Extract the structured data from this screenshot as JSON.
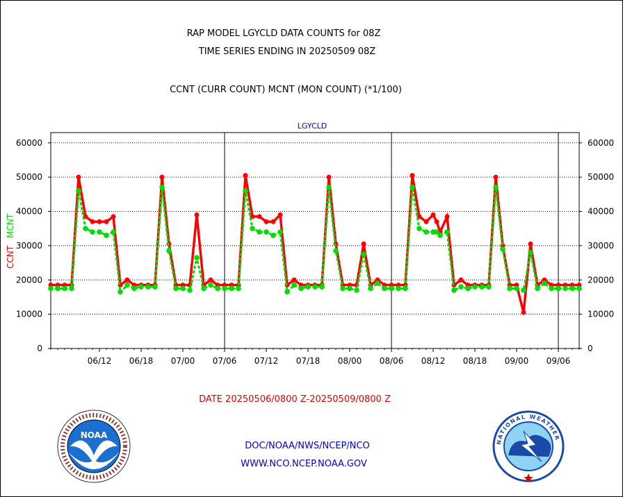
{
  "header": {
    "title_line1": "RAP MODEL LGYCLD DATA COUNTS for 08Z",
    "title_line2": "TIME SERIES ENDING IN 20250509 08Z",
    "subtitle": "CCNT (CURR COUNT) MCNT (MON COUNT) (*1/100)"
  },
  "footer": {
    "date_range": "DATE 20250506/0800 Z-20250509/0800 Z",
    "org_line1": "DOC/NOAA/NWS/NCEP/NCO",
    "org_line2": "WWW.NCO.NCEP.NOAA.GOV",
    "noaa_logo_text": "NOAA",
    "nws_logo_text": "NATIONAL WEATHER SERVICE"
  },
  "colors": {
    "ccnt": "#ff0000",
    "mcnt": "#00dd00",
    "panel_label": "#0000cc",
    "date_text": "#dd0000",
    "link_text": "#0000cc"
  },
  "chart_data": {
    "type": "line",
    "panel_label": "LGYCLD",
    "ylabel_ccnt": "CCNT",
    "ylabel_mcnt": "MCNT",
    "ylim": [
      0,
      63000
    ],
    "yticks": [
      0,
      10000,
      20000,
      30000,
      40000,
      50000,
      60000
    ],
    "ytick_labels": [
      "0",
      "10000",
      "20000",
      "30000",
      "40000",
      "50000",
      "60000"
    ],
    "xticks": [
      7,
      13,
      19,
      25,
      31,
      37,
      43,
      49,
      55,
      61,
      67,
      73
    ],
    "xtick_labels": [
      "06/12",
      "06/18",
      "07/00",
      "07/06",
      "07/12",
      "07/18",
      "08/00",
      "08/06",
      "08/12",
      "08/18",
      "09/00",
      "09/06"
    ],
    "xlim": [
      0,
      76
    ],
    "day_boundaries": [
      25,
      49,
      73
    ],
    "grid": true,
    "x": [
      0,
      1,
      2,
      3,
      4,
      5,
      6,
      7,
      8,
      9,
      10,
      11,
      12,
      13,
      14,
      15,
      16,
      17,
      18,
      19,
      20,
      21,
      22,
      23,
      24,
      25,
      26,
      27,
      28,
      29,
      30,
      31,
      32,
      33,
      34,
      35,
      36,
      37,
      38,
      39,
      40,
      41,
      42,
      43,
      44,
      45,
      46,
      47,
      48,
      49,
      50,
      51,
      52,
      53,
      54,
      55,
      55.5,
      56,
      57,
      58,
      59,
      60,
      61,
      62,
      63,
      64,
      65,
      66,
      67,
      68,
      69,
      70,
      71,
      72,
      73,
      74,
      75,
      76
    ],
    "series": [
      {
        "name": "CCNT",
        "values": [
          18500,
          18500,
          18500,
          18500,
          50000,
          38500,
          37000,
          37000,
          37000,
          38500,
          18500,
          20000,
          18500,
          18500,
          18500,
          18500,
          50000,
          30500,
          18500,
          18500,
          18500,
          39000,
          18500,
          20000,
          18500,
          18500,
          18500,
          18500,
          50500,
          38500,
          38500,
          37000,
          37000,
          39000,
          18500,
          20000,
          18500,
          18500,
          18500,
          18500,
          50000,
          30500,
          18500,
          18500,
          18500,
          30500,
          18500,
          20000,
          18500,
          18500,
          18500,
          18500,
          50500,
          38500,
          37000,
          39000,
          37000,
          34000,
          38500,
          18500,
          20000,
          18500,
          18500,
          18500,
          18500,
          50000,
          30000,
          18500,
          18500,
          10500,
          30500,
          18500,
          20000,
          18500,
          18500,
          18500,
          18500,
          18500
        ]
      },
      {
        "name": "MCNT",
        "values": [
          17500,
          17500,
          17500,
          17500,
          46000,
          35000,
          34000,
          34000,
          33000,
          34000,
          16500,
          18500,
          17500,
          18000,
          18000,
          18000,
          47000,
          28500,
          17500,
          17500,
          17000,
          26500,
          17500,
          18500,
          17500,
          17500,
          17500,
          17500,
          46000,
          35000,
          34000,
          34000,
          33000,
          34000,
          16500,
          18500,
          17500,
          18000,
          18000,
          18000,
          47000,
          28500,
          17500,
          17500,
          17000,
          27500,
          17500,
          19000,
          17500,
          17500,
          17500,
          17500,
          47000,
          35000,
          34000,
          34000,
          34000,
          33000,
          34000,
          17000,
          18000,
          17500,
          18000,
          18000,
          18000,
          47000,
          29000,
          17500,
          17500,
          17000,
          28000,
          17500,
          19000,
          17500,
          17500,
          17500,
          17500,
          17500
        ]
      }
    ]
  }
}
